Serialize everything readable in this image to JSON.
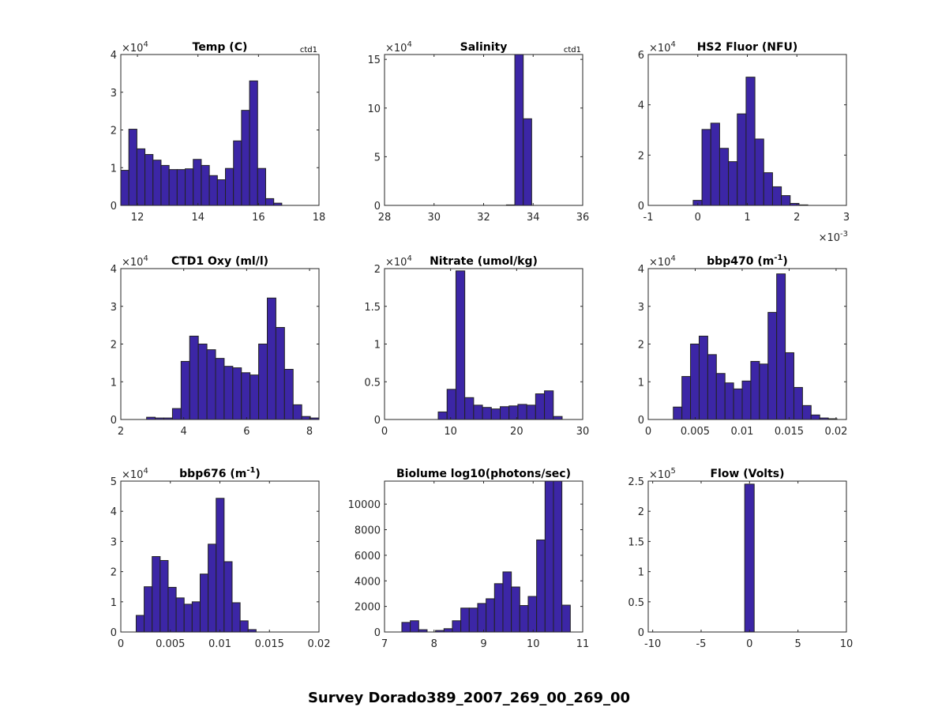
{
  "chart_data": {
    "suptitle": "Survey Dorado389_2007_269_00_269_00",
    "bar_color": "#3c26a6",
    "edge_color": "#222222",
    "panels": [
      {
        "type": "bar",
        "title": "Temp (C)",
        "corner_label": "ctd1",
        "y_exponent": "4",
        "x_exponent": null,
        "xlim": [
          11.45,
          18
        ],
        "ylim": [
          0,
          4
        ],
        "xticks": [
          12,
          14,
          16,
          18
        ],
        "xtick_labels": [
          "12",
          "14",
          "16",
          "18"
        ],
        "yticks": [
          0,
          1,
          2,
          3,
          4
        ],
        "ytick_labels": [
          "0",
          "1",
          "2",
          "3",
          "4"
        ],
        "bin_start": 11.45,
        "bin_width": 0.266,
        "counts": [
          0.93,
          2.02,
          1.5,
          1.35,
          1.2,
          1.06,
          0.95,
          0.95,
          0.97,
          1.22,
          1.06,
          0.79,
          0.68,
          0.98,
          1.71,
          2.52,
          3.3,
          0.98,
          0.18,
          0.06
        ]
      },
      {
        "type": "bar",
        "title": "Salinity",
        "corner_label": "ctd1",
        "y_exponent": "4",
        "x_exponent": null,
        "xlim": [
          28,
          36
        ],
        "ylim": [
          0,
          15.5
        ],
        "xticks": [
          28,
          30,
          32,
          34,
          36
        ],
        "xtick_labels": [
          "28",
          "30",
          "32",
          "34",
          "36"
        ],
        "yticks": [
          0,
          5,
          10,
          15
        ],
        "ytick_labels": [
          "0",
          "5",
          "10",
          "15"
        ],
        "bin_start": 32.92,
        "bin_width": 0.34,
        "counts": [
          0.05,
          15.5,
          8.9
        ]
      },
      {
        "type": "bar",
        "title": "HS2 Fluor (NFU)",
        "corner_label": null,
        "y_exponent": "4",
        "x_exponent": "-3",
        "xlim": [
          -1,
          3
        ],
        "ylim": [
          0,
          6
        ],
        "xticks": [
          -1,
          0,
          1,
          2,
          3
        ],
        "xtick_labels": [
          "-1",
          "0",
          "1",
          "2",
          "3"
        ],
        "yticks": [
          0,
          2,
          4,
          6
        ],
        "ytick_labels": [
          "0",
          "2",
          "4",
          "6"
        ],
        "bin_start": -0.093,
        "bin_width": 0.178,
        "counts": [
          0.2,
          3.02,
          3.27,
          2.27,
          1.74,
          3.64,
          5.1,
          2.64,
          1.3,
          0.74,
          0.39,
          0.08,
          0.02
        ]
      },
      {
        "type": "bar",
        "title": "CTD1 Oxy (ml/l)",
        "corner_label": null,
        "y_exponent": "4",
        "x_exponent": null,
        "xlim": [
          2,
          8.3
        ],
        "ylim": [
          0,
          4
        ],
        "xticks": [
          2,
          4,
          6,
          8
        ],
        "xtick_labels": [
          "2",
          "4",
          "6",
          "8"
        ],
        "yticks": [
          0,
          1,
          2,
          3,
          4
        ],
        "ytick_labels": [
          "0",
          "1",
          "2",
          "3",
          "4"
        ],
        "bin_start": 2.82,
        "bin_width": 0.274,
        "counts": [
          0.06,
          0.04,
          0.04,
          0.29,
          1.54,
          2.21,
          2.0,
          1.85,
          1.62,
          1.41,
          1.37,
          1.24,
          1.18,
          2.0,
          3.22,
          2.44,
          1.33,
          0.39,
          0.08,
          0.04
        ]
      },
      {
        "type": "bar",
        "title": "Nitrate (umol/kg)",
        "corner_label": null,
        "y_exponent": "4",
        "x_exponent": null,
        "xlim": [
          0,
          30
        ],
        "ylim": [
          0,
          2
        ],
        "xticks": [
          0,
          10,
          20,
          30
        ],
        "xtick_labels": [
          "0",
          "10",
          "20",
          "30"
        ],
        "yticks": [
          0,
          0.5,
          1,
          1.5,
          2
        ],
        "ytick_labels": [
          "0",
          "0.5",
          "1",
          "1.5",
          "2"
        ],
        "bin_start": 8.13,
        "bin_width": 1.34,
        "counts": [
          0.1,
          0.4,
          1.97,
          0.29,
          0.19,
          0.16,
          0.14,
          0.17,
          0.18,
          0.2,
          0.19,
          0.34,
          0.38,
          0.04
        ]
      },
      {
        "type": "bar",
        "title": "bbp470 (m",
        "title_sup": "-1",
        "title_suffix": ")",
        "corner_label": null,
        "y_exponent": "4",
        "x_exponent": null,
        "xlim": [
          0,
          0.0211
        ],
        "ylim": [
          0,
          4
        ],
        "xticks": [
          0,
          0.005,
          0.01,
          0.015,
          0.02
        ],
        "xtick_labels": [
          "0",
          "0.005",
          "0.01",
          "0.015",
          "0.02"
        ],
        "yticks": [
          0,
          1,
          2,
          3,
          4
        ],
        "ytick_labels": [
          "0",
          "1",
          "2",
          "3",
          "4"
        ],
        "bin_start": 0.00267,
        "bin_width": 0.000917,
        "counts": [
          0.33,
          1.14,
          2.0,
          2.21,
          1.72,
          1.22,
          0.97,
          0.81,
          1.02,
          1.54,
          1.47,
          2.84,
          3.86,
          1.77,
          0.85,
          0.37,
          0.12,
          0.04,
          0.02
        ]
      },
      {
        "type": "bar",
        "title": "bbp676 (m",
        "title_sup": "-1",
        "title_suffix": ")",
        "corner_label": null,
        "y_exponent": "4",
        "x_exponent": null,
        "xlim": [
          0,
          0.02
        ],
        "ylim": [
          0,
          5
        ],
        "xticks": [
          0,
          0.005,
          0.01,
          0.015,
          0.02
        ],
        "xtick_labels": [
          "0",
          "0.005",
          "0.01",
          "0.015",
          "0.02"
        ],
        "yticks": [
          0,
          1,
          2,
          3,
          4,
          5
        ],
        "ytick_labels": [
          "0",
          "1",
          "2",
          "3",
          "4",
          "5"
        ],
        "bin_start": 0.00155,
        "bin_width": 0.000807,
        "counts": [
          0.55,
          1.5,
          2.5,
          2.37,
          1.48,
          1.13,
          0.92,
          1.0,
          1.92,
          2.91,
          4.43,
          2.33,
          0.97,
          0.37,
          0.08
        ]
      },
      {
        "type": "bar",
        "title": "Biolume log10(photons/sec)",
        "corner_label": null,
        "y_exponent": null,
        "x_exponent": null,
        "xlim": [
          7,
          11
        ],
        "ylim": [
          0,
          11800
        ],
        "xticks": [
          7,
          8,
          9,
          10,
          11
        ],
        "xtick_labels": [
          "7",
          "8",
          "9",
          "10",
          "11"
        ],
        "yticks": [
          0,
          2000,
          4000,
          6000,
          8000,
          10000
        ],
        "ytick_labels": [
          "0",
          "2000",
          "4000",
          "6000",
          "8000",
          "10000"
        ],
        "bin_start": 7.35,
        "bin_width": 0.17,
        "counts": [
          750,
          880,
          180,
          0,
          120,
          260,
          880,
          1870,
          1870,
          2230,
          2600,
          3780,
          4700,
          3520,
          2070,
          2780,
          7200,
          11800,
          11800,
          2100
        ]
      },
      {
        "type": "bar",
        "title": "Flow (Volts)",
        "corner_label": null,
        "y_exponent": "5",
        "x_exponent": null,
        "xlim": [
          -10.46,
          10
        ],
        "ylim": [
          0,
          2.5
        ],
        "xticks": [
          -10,
          -5,
          0,
          5,
          10
        ],
        "xtick_labels": [
          "-10",
          "-5",
          "0",
          "5",
          "10"
        ],
        "yticks": [
          0,
          0.5,
          1,
          1.5,
          2,
          2.5
        ],
        "ytick_labels": [
          "0",
          "0.5",
          "1",
          "1.5",
          "2",
          "2.5"
        ],
        "bin_start": -0.5,
        "bin_width": 0.98,
        "counts": [
          2.45
        ]
      }
    ]
  }
}
